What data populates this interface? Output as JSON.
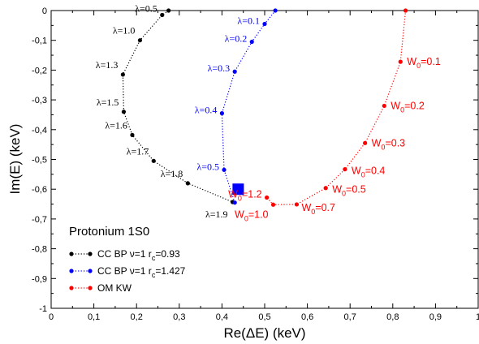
{
  "chart_data": {
    "type": "scatter",
    "xlabel": "Re(ΔE) (keV)",
    "ylabel": "Im(E)  (keV)",
    "xlim": [
      0,
      1
    ],
    "ylim": [
      -1,
      0
    ],
    "x_ticks": [
      "0",
      "0,1",
      "0,2",
      "0,3",
      "0,4",
      "0,5",
      "0,6",
      "0,7",
      "0,8",
      "0,9",
      "1"
    ],
    "y_ticks": [
      "0",
      "-0,1",
      "-0,2",
      "-0,3",
      "-0,4",
      "-0,5",
      "-0,6",
      "-0,7",
      "-0,8",
      "-0,9",
      "-1"
    ],
    "legend_title": "Protonium 1S0",
    "legend_position": "bottom-left",
    "series": [
      {
        "name": "CC BP ν=1 r",
        "name_sub": "c",
        "name_rest": "=0.93",
        "color": "#000000",
        "linestyle": "dotted",
        "points": [
          {
            "x": 0.275,
            "y": 0.0,
            "label": ""
          },
          {
            "x": 0.26,
            "y": -0.015,
            "label": "λ=0.5"
          },
          {
            "x": 0.208,
            "y": -0.1,
            "label": "λ=1.0"
          },
          {
            "x": 0.168,
            "y": -0.215,
            "label": "λ=1.3"
          },
          {
            "x": 0.17,
            "y": -0.34,
            "label": "λ=1.5"
          },
          {
            "x": 0.19,
            "y": -0.418,
            "label": "λ=1.6"
          },
          {
            "x": 0.24,
            "y": -0.505,
            "label": "λ=1.7"
          },
          {
            "x": 0.32,
            "y": -0.58,
            "label": "λ=1.8"
          },
          {
            "x": 0.425,
            "y": -0.643,
            "label": "λ=1.9"
          }
        ]
      },
      {
        "name": "CC BP ν=1 r",
        "name_sub": "c",
        "name_rest": "=1.427",
        "color": "#0000ff",
        "linestyle": "dotted",
        "points": [
          {
            "x": 0.525,
            "y": 0.0,
            "label": ""
          },
          {
            "x": 0.5,
            "y": -0.045,
            "label": "λ=0.1"
          },
          {
            "x": 0.47,
            "y": -0.105,
            "label": "λ=0.2"
          },
          {
            "x": 0.43,
            "y": -0.205,
            "label": "λ=0.3"
          },
          {
            "x": 0.4,
            "y": -0.345,
            "label": "λ=0.4"
          },
          {
            "x": 0.405,
            "y": -0.535,
            "label": "λ=0.5"
          },
          {
            "x": 0.43,
            "y": -0.645,
            "label": ""
          }
        ]
      },
      {
        "name": "OM KW",
        "color": "#ff0000",
        "linestyle": "dotted",
        "points": [
          {
            "x": 0.83,
            "y": 0.0,
            "label": ""
          },
          {
            "x": 0.818,
            "y": -0.172,
            "label": "W0=0.1"
          },
          {
            "x": 0.78,
            "y": -0.32,
            "label": "W0=0.2"
          },
          {
            "x": 0.735,
            "y": -0.445,
            "label": "W0=0.3"
          },
          {
            "x": 0.688,
            "y": -0.533,
            "label": "W0=0.4"
          },
          {
            "x": 0.643,
            "y": -0.596,
            "label": "W0=0.5"
          },
          {
            "x": 0.575,
            "y": -0.651,
            "label": "W0=0.7"
          },
          {
            "x": 0.52,
            "y": -0.652,
            "label": "W0=1.0"
          },
          {
            "x": 0.505,
            "y": -0.628,
            "label": "W0=1.2"
          }
        ]
      }
    ],
    "marker": {
      "type": "square",
      "x": 0.438,
      "y": -0.6,
      "color": "#0000ff"
    }
  }
}
